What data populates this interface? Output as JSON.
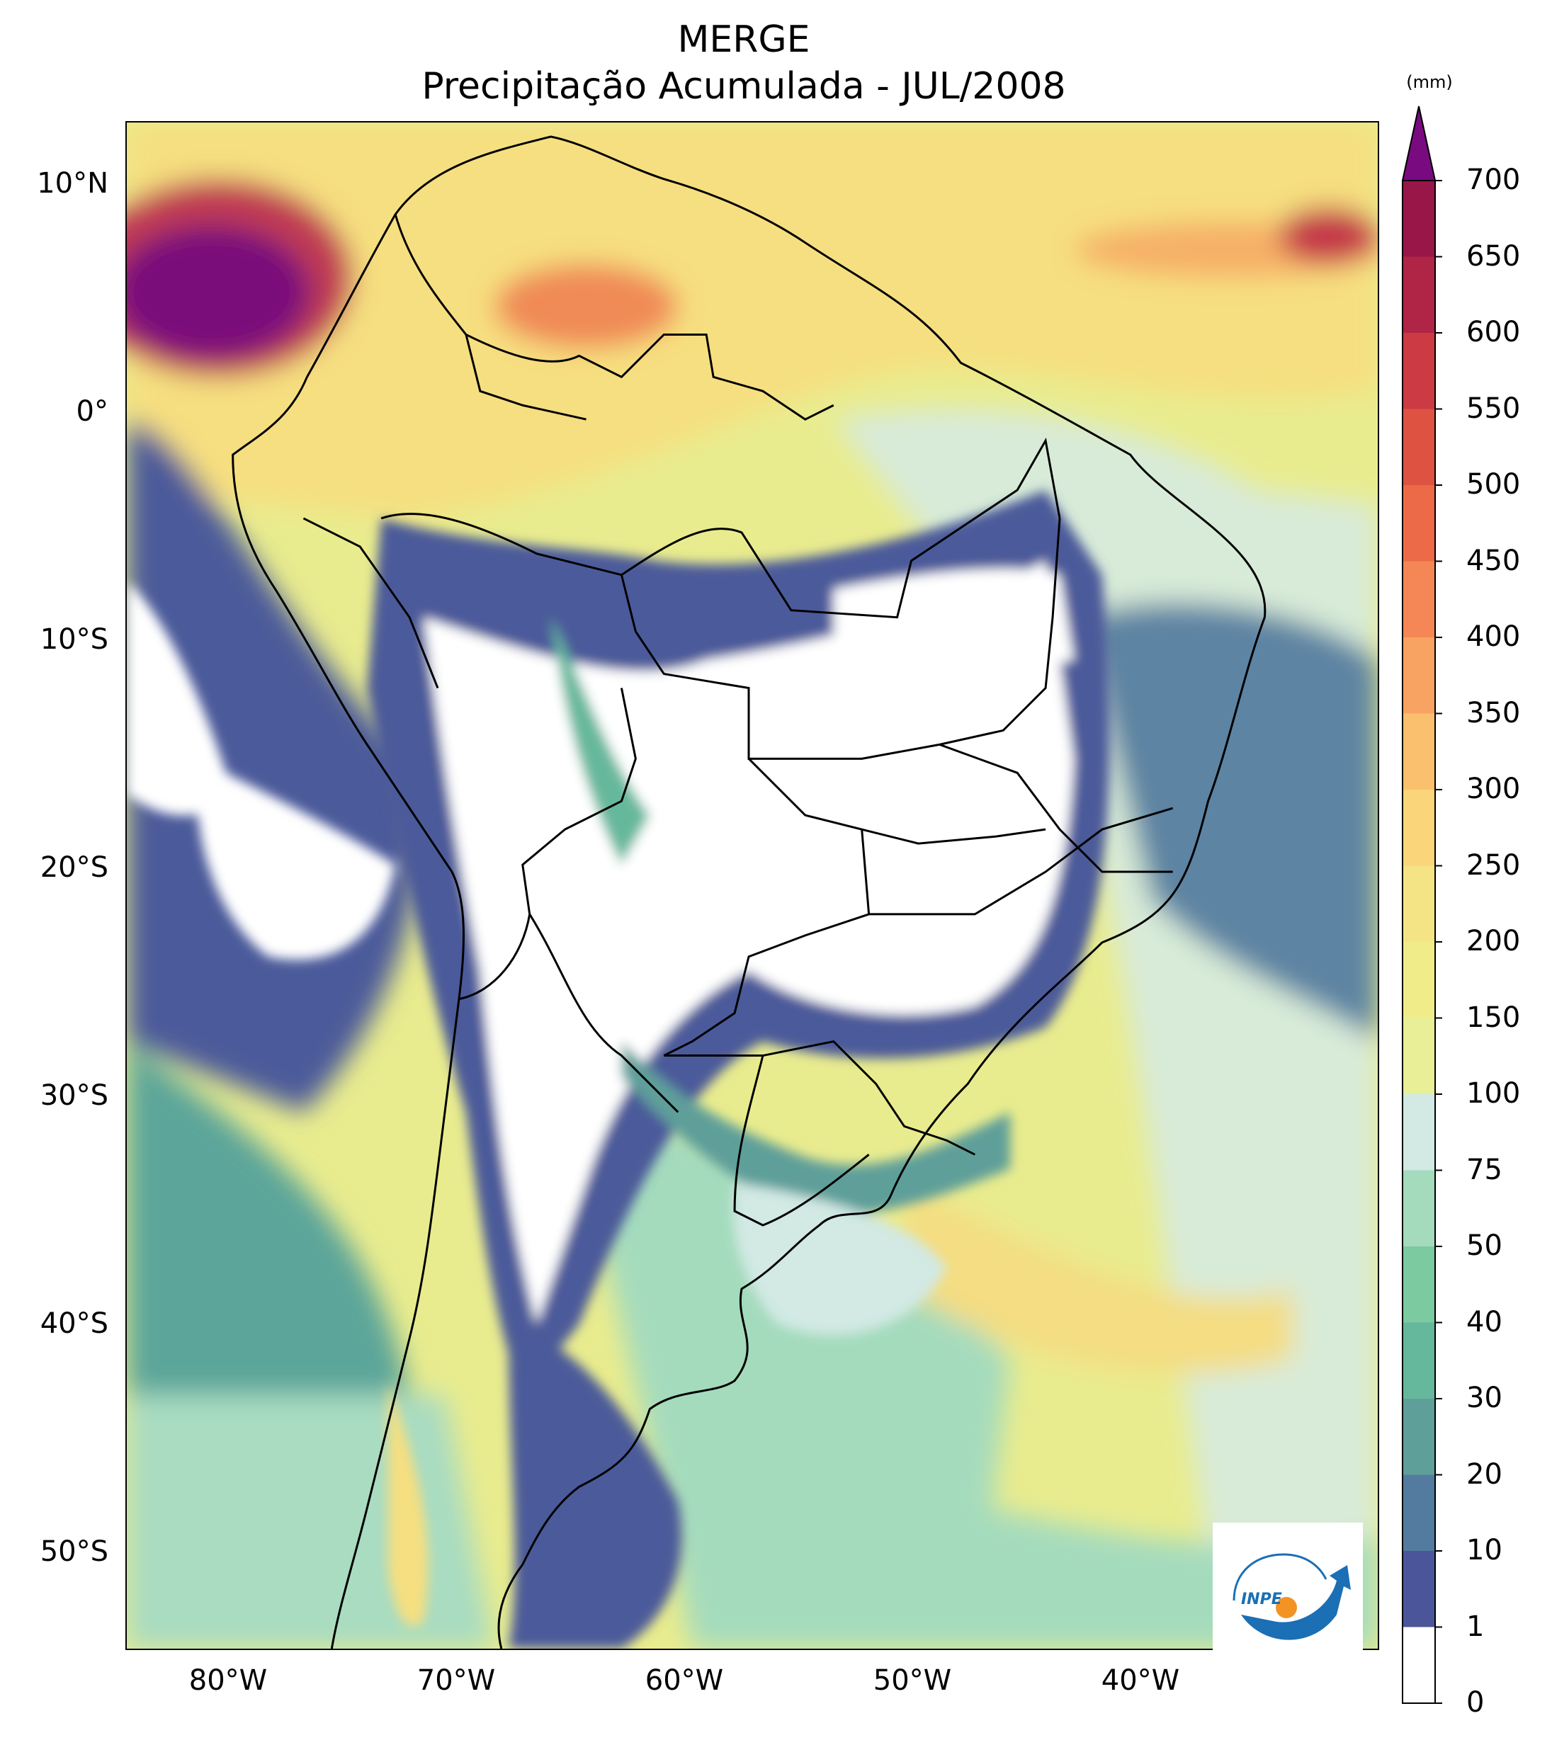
{
  "title": {
    "line1": "MERGE",
    "line2": "Precipitação Acumulada - JUL/2008"
  },
  "map": {
    "region": "South America",
    "lat_labels": [
      "10°N",
      "0°",
      "10°S",
      "20°S",
      "30°S",
      "40°S",
      "50°S"
    ],
    "lon_labels": [
      "80°W",
      "70°W",
      "60°W",
      "50°W",
      "40°W"
    ],
    "lat_values": [
      10,
      0,
      -10,
      -20,
      -30,
      -40,
      -50
    ],
    "lon_values": [
      -80,
      -70,
      -60,
      -50,
      -40
    ]
  },
  "colorbar": {
    "unit": "(mm)",
    "ticks": [
      "0",
      "1",
      "10",
      "20",
      "30",
      "40",
      "50",
      "75",
      "100",
      "150",
      "200",
      "250",
      "300",
      "350",
      "400",
      "450",
      "500",
      "550",
      "600",
      "650",
      "700"
    ],
    "colors": [
      "#ffffff",
      "#4a5699",
      "#537ba0",
      "#5f9f9a",
      "#66b89c",
      "#7ccaa0",
      "#a4dbbd",
      "#d2e9e4",
      "#e8ef96",
      "#f0ec8a",
      "#f5e486",
      "#fad57a",
      "#fbc06e",
      "#f9a362",
      "#f48755",
      "#ec6a48",
      "#de5242",
      "#cc3a43",
      "#b02445",
      "#991648",
      "#75107a"
    ],
    "extend_color": "#7a0a7f"
  },
  "logo": {
    "text": "INPE",
    "colors": [
      "#1a6fb5",
      "#f39324"
    ]
  }
}
